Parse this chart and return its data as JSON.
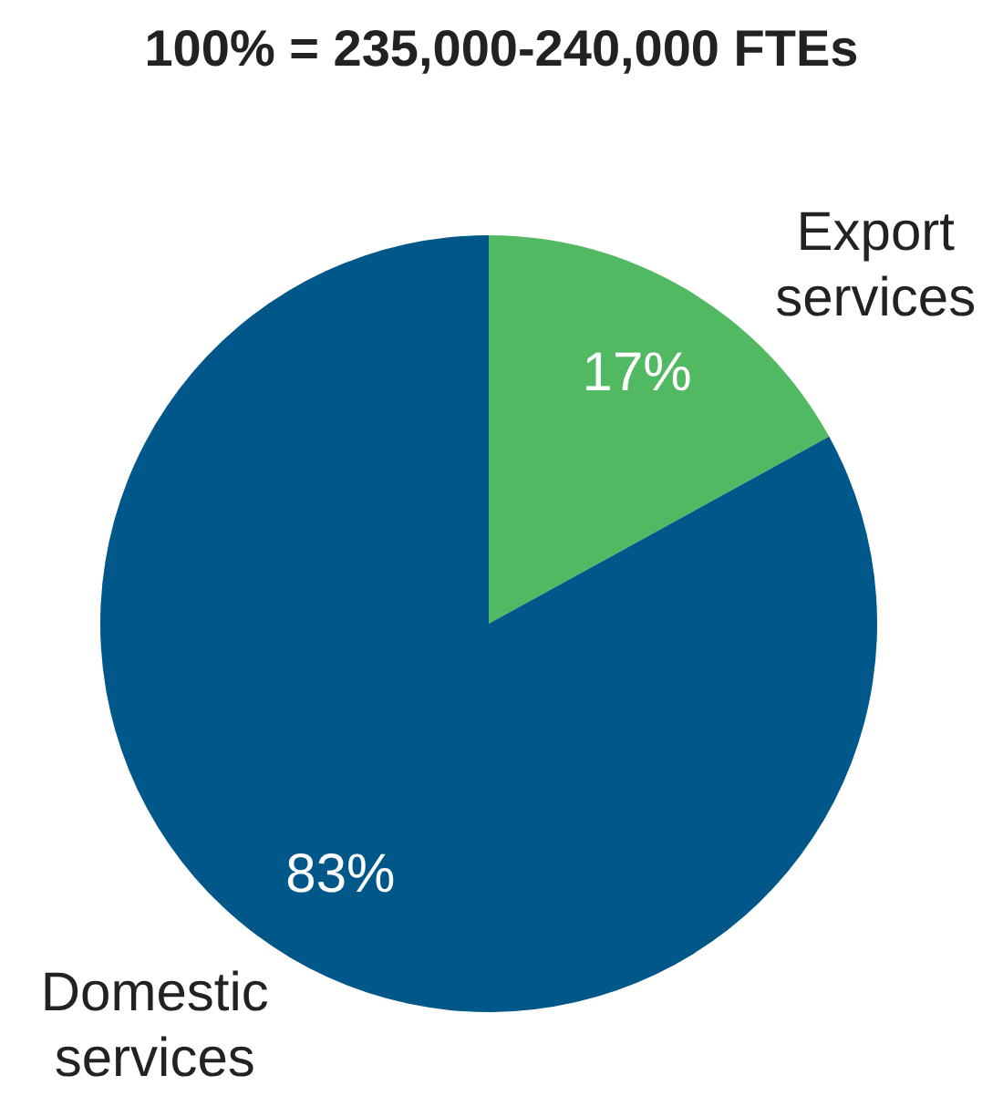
{
  "chart_data": {
    "type": "pie",
    "title": "100% = 235,000-240,000 FTEs",
    "categories": [
      "Export services",
      "Domestic services"
    ],
    "values": [
      17,
      83
    ],
    "colors": [
      "#52b963",
      "#00578a"
    ],
    "value_labels": [
      "17%",
      "83%"
    ]
  }
}
